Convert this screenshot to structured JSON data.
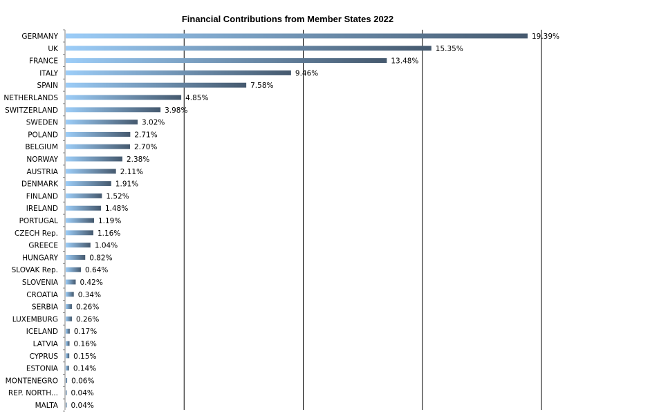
{
  "chart_data": {
    "type": "bar",
    "orientation": "horizontal",
    "title": "Financial  Contributions  from  Member States 2022",
    "xlabel": "",
    "ylabel": "",
    "xlim": [
      0,
      20
    ],
    "grid": "vertical",
    "legend": "none",
    "colors": {
      "bar_start": "#9ccdf8",
      "bar_end": "#45596e",
      "grid": "#000000"
    },
    "categories": [
      "GERMANY",
      "UK",
      "FRANCE",
      "ITALY",
      "SPAIN",
      "NETHERLANDS",
      "SWITZERLAND",
      "SWEDEN",
      "POLAND",
      "BELGIUM",
      "NORWAY",
      "AUSTRIA",
      "DENMARK",
      "FINLAND",
      "IRELAND",
      "PORTUGAL",
      "CZECH Rep.",
      "GREECE",
      "HUNGARY",
      "SLOVAK Rep.",
      "SLOVENIA",
      "CROATIA",
      "SERBIA",
      "LUXEMBURG",
      "ICELAND",
      "LATVIA",
      "CYPRUS",
      "ESTONIA",
      "MONTENEGRO",
      "REP. NORTH...",
      "MALTA"
    ],
    "values": [
      19.39,
      15.35,
      13.48,
      9.46,
      7.58,
      4.85,
      3.98,
      3.02,
      2.71,
      2.7,
      2.38,
      2.11,
      1.91,
      1.52,
      1.48,
      1.19,
      1.16,
      1.04,
      0.82,
      0.64,
      0.42,
      0.34,
      0.26,
      0.26,
      0.17,
      0.16,
      0.15,
      0.14,
      0.06,
      0.04,
      0.04
    ],
    "data_labels": [
      "19.39%",
      "15.35%",
      "13.48%",
      "9.46%",
      "7.58%",
      "4.85%",
      "3.98%",
      "3.02%",
      "2.71%",
      "2.70%",
      "2.38%",
      "2.11%",
      "1.91%",
      "1.52%",
      "1.48%",
      "1.19%",
      "1.16%",
      "1.04%",
      "0.82%",
      "0.64%",
      "0.42%",
      "0.34%",
      "0.26%",
      "0.26%",
      "0.17%",
      "0.16%",
      "0.15%",
      "0.14%",
      "0.06%",
      "0.04%",
      "0.04%"
    ]
  }
}
